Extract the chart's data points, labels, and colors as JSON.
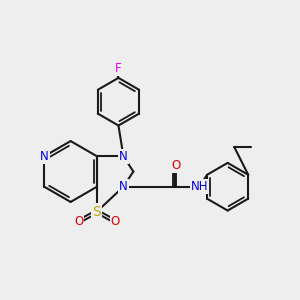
{
  "bg_color": "#eeeeee",
  "bond_color": "#1a1a1a",
  "bond_width": 1.5,
  "atom_colors": {
    "N": "#0000dd",
    "S": "#bbaa00",
    "O": "#dd0000",
    "F": "#ee00ee",
    "C": "#1a1a1a",
    "H": "#555555"
  },
  "font_size": 8.5,
  "dbo": 0.055
}
